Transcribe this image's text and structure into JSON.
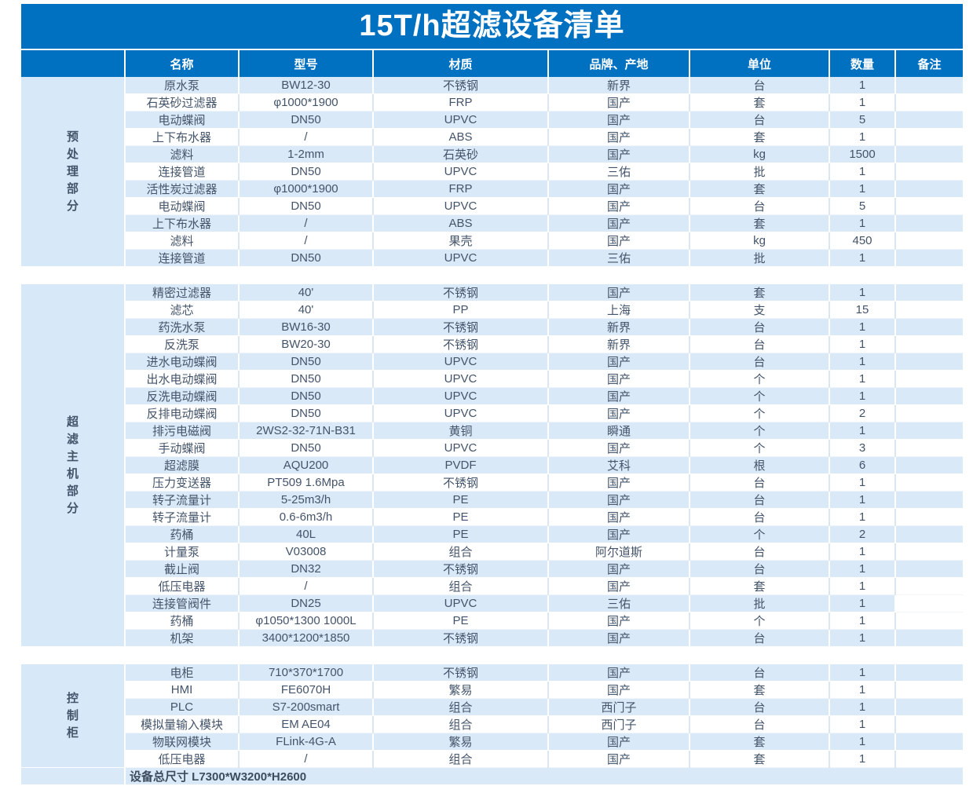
{
  "title": "15T/h超滤设备清单",
  "columns": [
    "名称",
    "型号",
    "材质",
    "品牌、产地",
    "单位",
    "数量",
    "备注"
  ],
  "sections": [
    {
      "label": "预处理部分",
      "rows": [
        [
          "原水泵",
          "BW12-30",
          "不锈钢",
          "新界",
          "台",
          "1",
          ""
        ],
        [
          "石英砂过滤器",
          "φ1000*1900",
          "FRP",
          "国产",
          "套",
          "1",
          ""
        ],
        [
          "电动蝶阀",
          "DN50",
          "UPVC",
          "国产",
          "台",
          "5",
          ""
        ],
        [
          "上下布水器",
          "/",
          "ABS",
          "国产",
          "套",
          "1",
          ""
        ],
        [
          "滤料",
          "1-2mm",
          "石英砂",
          "国产",
          "kg",
          "1500",
          ""
        ],
        [
          "连接管道",
          "DN50",
          "UPVC",
          "三佑",
          "批",
          "1",
          ""
        ],
        [
          "活性炭过滤器",
          "φ1000*1900",
          "FRP",
          "国产",
          "套",
          "1",
          ""
        ],
        [
          "电动蝶阀",
          "DN50",
          "UPVC",
          "国产",
          "台",
          "5",
          ""
        ],
        [
          "上下布水器",
          "/",
          "ABS",
          "国产",
          "套",
          "1",
          ""
        ],
        [
          "滤料",
          "/",
          "果壳",
          "国产",
          "kg",
          "450",
          ""
        ],
        [
          "连接管道",
          "DN50",
          "UPVC",
          "三佑",
          "批",
          "1",
          ""
        ]
      ]
    },
    {
      "label": "超滤主机部分",
      "remark_unstriped_row": 18,
      "rows": [
        [
          "精密过滤器",
          "40'",
          "不锈钢",
          "国产",
          "套",
          "1",
          ""
        ],
        [
          "滤芯",
          "40'",
          "PP",
          "上海",
          "支",
          "15",
          ""
        ],
        [
          "药洗水泵",
          "BW16-30",
          "不锈钢",
          "新界",
          "台",
          "1",
          ""
        ],
        [
          "反洗泵",
          "BW20-30",
          "不锈钢",
          "新界",
          "台",
          "1",
          ""
        ],
        [
          "进水电动蝶阀",
          "DN50",
          "UPVC",
          "国产",
          "台",
          "1",
          ""
        ],
        [
          "出水电动蝶阀",
          "DN50",
          "UPVC",
          "国产",
          "个",
          "1",
          ""
        ],
        [
          "反洗电动蝶阀",
          "DN50",
          "UPVC",
          "国产",
          "个",
          "1",
          ""
        ],
        [
          "反排电动蝶阀",
          "DN50",
          "UPVC",
          "国产",
          "个",
          "2",
          ""
        ],
        [
          "排污电磁阀",
          "2WS2-32-71N-B31",
          "黄铜",
          "瞬通",
          "个",
          "1",
          ""
        ],
        [
          "手动蝶阀",
          "DN50",
          "UPVC",
          "国产",
          "个",
          "3",
          ""
        ],
        [
          "超滤膜",
          "AQU200",
          "PVDF",
          "艾科",
          "根",
          "6",
          ""
        ],
        [
          "压力变送器",
          "PT509 1.6Mpa",
          "不锈钢",
          "国产",
          "台",
          "1",
          ""
        ],
        [
          "转子流量计",
          "5-25m3/h",
          "PE",
          "国产",
          "台",
          "1",
          ""
        ],
        [
          "转子流量计",
          "0.6-6m3/h",
          "PE",
          "国产",
          "台",
          "1",
          ""
        ],
        [
          "药桶",
          "40L",
          "PE",
          "国产",
          "个",
          "2",
          ""
        ],
        [
          "计量泵",
          "V03008",
          "组合",
          "阿尔道斯",
          "台",
          "1",
          ""
        ],
        [
          "截止阀",
          "DN32",
          "不锈钢",
          "国产",
          "台",
          "1",
          ""
        ],
        [
          "低压电器",
          "/",
          "组合",
          "国产",
          "套",
          "1",
          ""
        ],
        [
          "连接管阀件",
          "DN25",
          "UPVC",
          "三佑",
          "批",
          "1",
          ""
        ],
        [
          "药桶",
          "φ1050*1300 1000L",
          "PE",
          "国产",
          "个",
          "1",
          ""
        ],
        [
          "机架",
          "3400*1200*1850",
          "不锈钢",
          "国产",
          "台",
          "1",
          ""
        ]
      ]
    },
    {
      "label": "控制柜",
      "rows": [
        [
          "电柜",
          "710*370*1700",
          "不锈钢",
          "国产",
          "台",
          "1",
          ""
        ],
        [
          "HMI",
          "FE6070H",
          "繁易",
          "国产",
          "套",
          "1",
          ""
        ],
        [
          "PLC",
          "S7-200smart",
          "组合",
          "西门子",
          "台",
          "1",
          ""
        ],
        [
          "模拟量输入模块",
          "EM AE04",
          "组合",
          "西门子",
          "台",
          "1",
          ""
        ],
        [
          "物联网模块",
          "FLink-4G-A",
          "繁易",
          "国产",
          "套",
          "1",
          ""
        ],
        [
          "低压电器",
          "/",
          "组合",
          "国产",
          "套",
          "1",
          ""
        ]
      ]
    }
  ],
  "footer": "设备总尺寸 L7300*W3200*H2600",
  "colors": {
    "accent_blue": "#0070C0",
    "stripe_blue": "#D9E9F8",
    "label_col_blue": "#D7E9F9",
    "cell_text": "#44546A",
    "header_text": "#FFFFFF"
  }
}
